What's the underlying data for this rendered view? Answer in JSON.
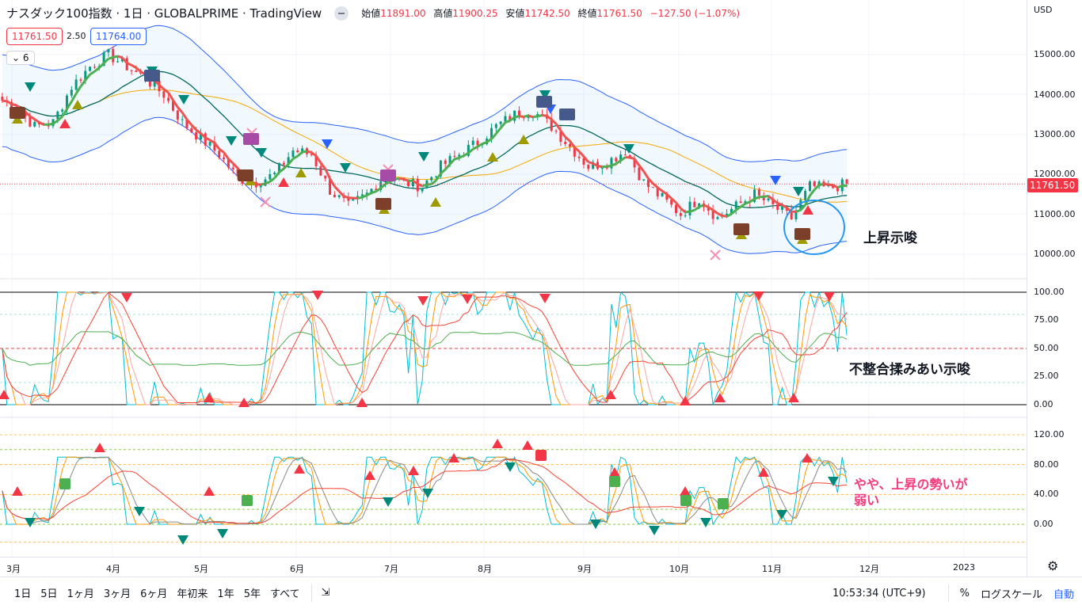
{
  "header": {
    "title": "ナスダック100指数 · 1日 · GLOBALPRIME · TradingView",
    "ohlc": [
      {
        "label": "始値",
        "value": "11891.00"
      },
      {
        "label": "高値",
        "value": "11900.25"
      },
      {
        "label": "安値",
        "value": "11742.50"
      },
      {
        "label": "終値",
        "value": "11761.50"
      },
      {
        "label": "",
        "value": "−127.50 (−1.07%)"
      }
    ]
  },
  "bid": "11761.50",
  "spread": "2.50",
  "ask": "11764.00",
  "indicator_toggle": "6",
  "price_axis": {
    "currency": "USD",
    "labels": [
      "15000.00",
      "14000.00",
      "13000.00",
      "12000.00",
      "11000.00",
      "10000.00"
    ],
    "current": "11761.50"
  },
  "osc1_axis": [
    "100.00",
    "75.00",
    "50.00",
    "25.00",
    "0.00"
  ],
  "osc2_axis": [
    "120.00",
    "80.00",
    "40.00",
    "0.00"
  ],
  "time_axis": [
    "3月",
    "4月",
    "5月",
    "6月",
    "7月",
    "8月",
    "9月",
    "10月",
    "11月",
    "12月",
    "2023"
  ],
  "annotations": {
    "up": "上昇示唆",
    "mixed": "不整合揉みあい示唆",
    "weak1": "やや、上昇の勢いが",
    "weak2": "弱い"
  },
  "toolbar": {
    "ranges": [
      "1日",
      "5日",
      "1ヶ月",
      "3ヶ月",
      "6ヶ月",
      "年初来",
      "1年",
      "5年",
      "すべて"
    ],
    "time": "10:53:34 (UTC+9)",
    "percent": "%",
    "log": "ログスケール",
    "auto": "自動"
  },
  "colors": {
    "up": "#089981",
    "down": "#f23645",
    "band": "#2962ff",
    "ma1": "#f7a600",
    "ma2": "#00695c"
  },
  "chart_data": {
    "type": "candlestick",
    "title": "ナスダック100指数 1日",
    "closes": [
      13900,
      13700,
      13200,
      13300,
      14200,
      14700,
      15000,
      14700,
      14400,
      14000,
      13300,
      12900,
      12500,
      11900,
      11800,
      12000,
      12600,
      12500,
      11600,
      11200,
      11500,
      12000,
      11800,
      11700,
      12200,
      12500,
      12800,
      13200,
      13500,
      13600,
      13200,
      12700,
      12200,
      12300,
      12600,
      11800,
      11400,
      11000,
      11400,
      10900,
      11200,
      11500,
      11200,
      10900,
      11700,
      11650,
      11761.5
    ],
    "ylim": [
      9700,
      15400
    ]
  }
}
